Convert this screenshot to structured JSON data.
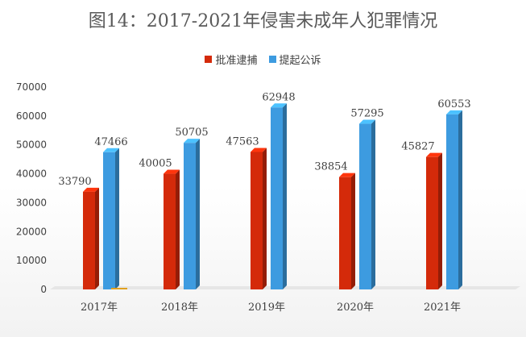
{
  "chart_data": {
    "type": "bar",
    "title": "图14：2017-2021年侵害未成年人犯罪情况",
    "categories": [
      "2017年",
      "2018年",
      "2019年",
      "2020年",
      "2021年"
    ],
    "series": [
      {
        "name": "批准逮捕",
        "values": [
          33790,
          40005,
          47563,
          38854,
          45827
        ],
        "color": "#d42a0a"
      },
      {
        "name": "提起公诉",
        "values": [
          47466,
          50705,
          62948,
          57295,
          60553
        ],
        "color": "#3d9be0"
      }
    ],
    "ylim": [
      0,
      70000
    ],
    "yticks": [
      0,
      10000,
      20000,
      30000,
      40000,
      50000,
      60000,
      70000
    ],
    "legend_position": "top-center",
    "grid": false
  }
}
